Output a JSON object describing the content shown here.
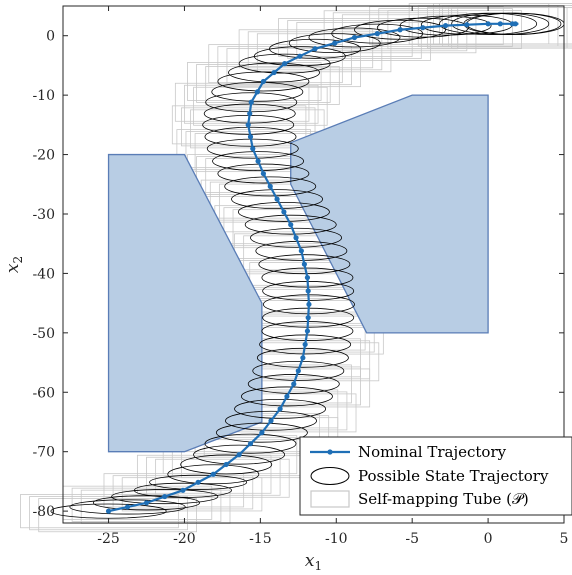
{
  "chart_data": {
    "type": "line",
    "xlabel": "x1",
    "ylabel": "x2",
    "xlim": [
      -28,
      5
    ],
    "ylim": [
      -82,
      5
    ],
    "xticks": [
      -25,
      -20,
      -15,
      -10,
      -5,
      0,
      5
    ],
    "yticks": [
      0,
      -10,
      -20,
      -30,
      -40,
      -50,
      -60,
      -70,
      -80
    ],
    "grid": false,
    "legend_position": "bottom-right",
    "colors": {
      "trajectory": "#1f6fb6",
      "obstacle_fill": "#b8cde4",
      "obstacle_edge": "#5a7db6",
      "ellipse": "#000000",
      "tube": "#c8c8c8"
    },
    "obstacles": [
      {
        "x": [
          -25,
          -20,
          -14.9,
          -14.9,
          -20,
          -25
        ],
        "y": [
          -20,
          -20,
          -45,
          -65,
          -70,
          -70
        ]
      },
      {
        "x": [
          -13,
          -5,
          0,
          0,
          -8,
          -13
        ],
        "y": [
          -18,
          -10,
          -10,
          -50,
          -50,
          -25
        ]
      }
    ],
    "series": [
      {
        "name": "Nominal Trajectory",
        "x": [
          -25,
          -22.5,
          -20.1,
          -18.1,
          -16.4,
          -14.9,
          -13.7,
          -12.8,
          -12.2,
          -11.9,
          -11.8,
          -11.9,
          -12.3,
          -13,
          -13.9,
          -14.8,
          -15.5,
          -15.8,
          -15.6,
          -14.8,
          -13.4,
          -11.4,
          -8.8,
          -5.8,
          -2.8,
          0,
          1.6,
          2
        ],
        "y": [
          -80,
          -78.6,
          -76.5,
          -73.8,
          -70.5,
          -66.8,
          -62.8,
          -58.6,
          -54.2,
          -49.7,
          -45.2,
          -40.7,
          -36.2,
          -31.8,
          -27.5,
          -23.2,
          -19,
          -15,
          -11.2,
          -7.7,
          -4.7,
          -2.2,
          -0.3,
          1,
          1.7,
          2,
          2,
          2
        ]
      }
    ],
    "legend": [
      {
        "label": "Nominal Trajectory",
        "style": "line-marker"
      },
      {
        "label": "Possible State Trajectory",
        "style": "ellipse"
      },
      {
        "label": "Self-mapping Tube (𝒫)",
        "style": "box"
      }
    ]
  }
}
